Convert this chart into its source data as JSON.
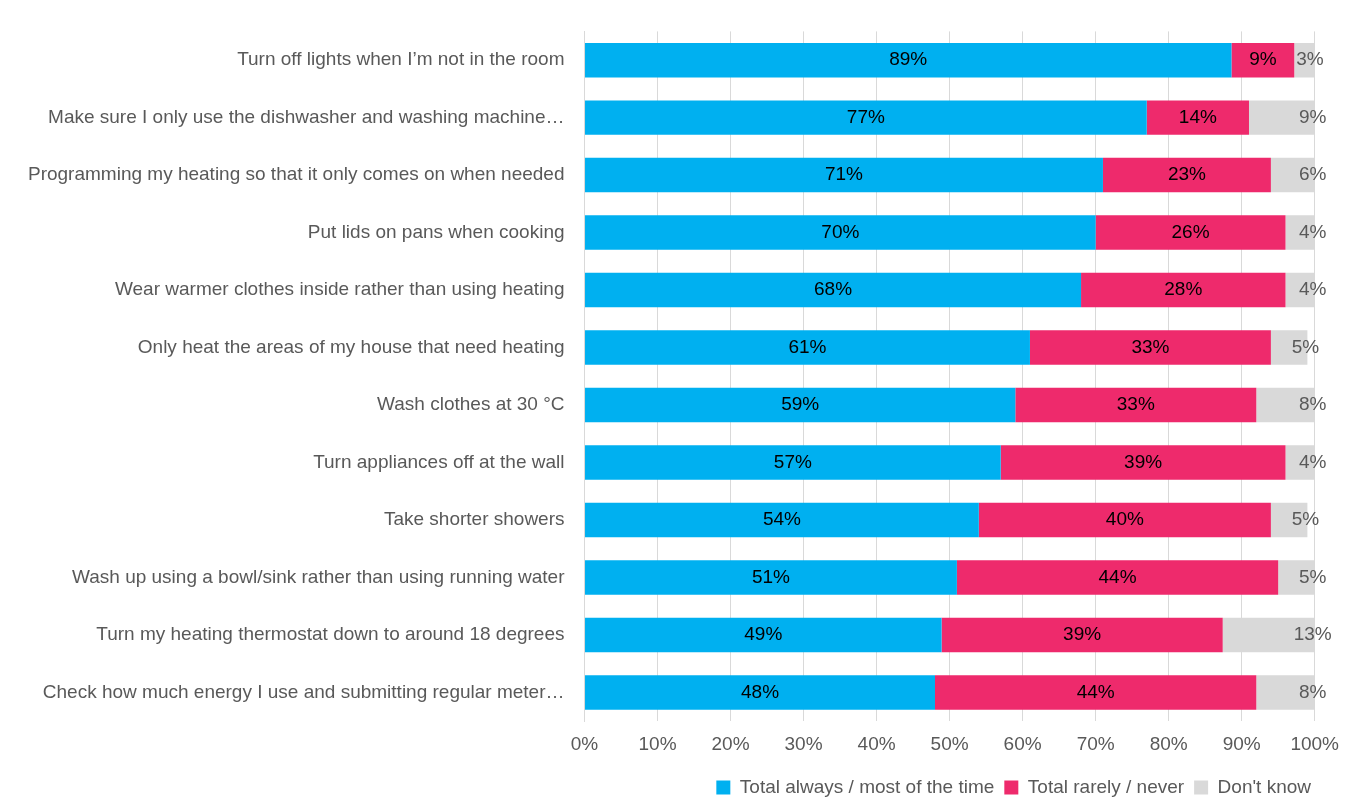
{
  "chart_data": {
    "type": "bar",
    "orientation": "horizontal",
    "stacked": true,
    "categories": [
      "Turn off lights when I’m not in the room",
      "Make sure I only use the dishwasher and washing machine…",
      "Programming my heating so that it only comes on when needed",
      "Put lids on pans when cooking",
      "Wear warmer clothes inside rather than using heating",
      "Only heat the areas of my house that need heating",
      "Wash clothes at 30 °C",
      "Turn appliances off at the wall",
      "Take shorter showers",
      "Wash up using a bowl/sink rather than using running water",
      "Turn my heating thermostat down to around 18 degrees",
      "Check how much energy I use and submitting regular meter…"
    ],
    "series": [
      {
        "name": "Total always / most of the time",
        "color": "#00b0f0",
        "values": [
          88.6,
          77,
          71,
          70,
          68,
          61,
          59,
          57,
          54,
          51,
          48.9,
          48
        ],
        "value_labels": [
          "89%",
          "77%",
          "71%",
          "70%",
          "68%",
          "61%",
          "59%",
          "57%",
          "54%",
          "51%",
          "49%",
          "48%"
        ]
      },
      {
        "name": "Total rarely / never",
        "color": "#ee2a6c",
        "values": [
          8.6,
          14,
          23,
          26,
          28,
          33,
          33,
          39,
          40,
          44,
          38.5,
          44
        ],
        "value_labels": [
          "9%",
          "14%",
          "23%",
          "26%",
          "28%",
          "33%",
          "33%",
          "39%",
          "40%",
          "44%",
          "39%",
          "44%"
        ]
      },
      {
        "name": "Don't know",
        "color": "#d9d9d9",
        "values": [
          2.8,
          9,
          6,
          4,
          4,
          5,
          8,
          4,
          5,
          5,
          12.6,
          8
        ],
        "value_labels": [
          "3%",
          "9%",
          "6%",
          "4%",
          "4%",
          "5%",
          "8%",
          "4%",
          "5%",
          "5%",
          "13%",
          "8%"
        ]
      }
    ],
    "xlim": [
      0,
      100
    ],
    "xticks": [
      {
        "value": 0,
        "label": "0%"
      },
      {
        "value": 10,
        "label": "10%"
      },
      {
        "value": 20,
        "label": "20%"
      },
      {
        "value": 30,
        "label": "30%"
      },
      {
        "value": 40,
        "label": "40%"
      },
      {
        "value": 50,
        "label": "50%"
      },
      {
        "value": 60,
        "label": "60%"
      },
      {
        "value": 70,
        "label": "70%"
      },
      {
        "value": 80,
        "label": "80%"
      },
      {
        "value": 90,
        "label": "90%"
      },
      {
        "value": 100,
        "label": "100%"
      }
    ],
    "grid": "x",
    "legend": "bottom right"
  }
}
